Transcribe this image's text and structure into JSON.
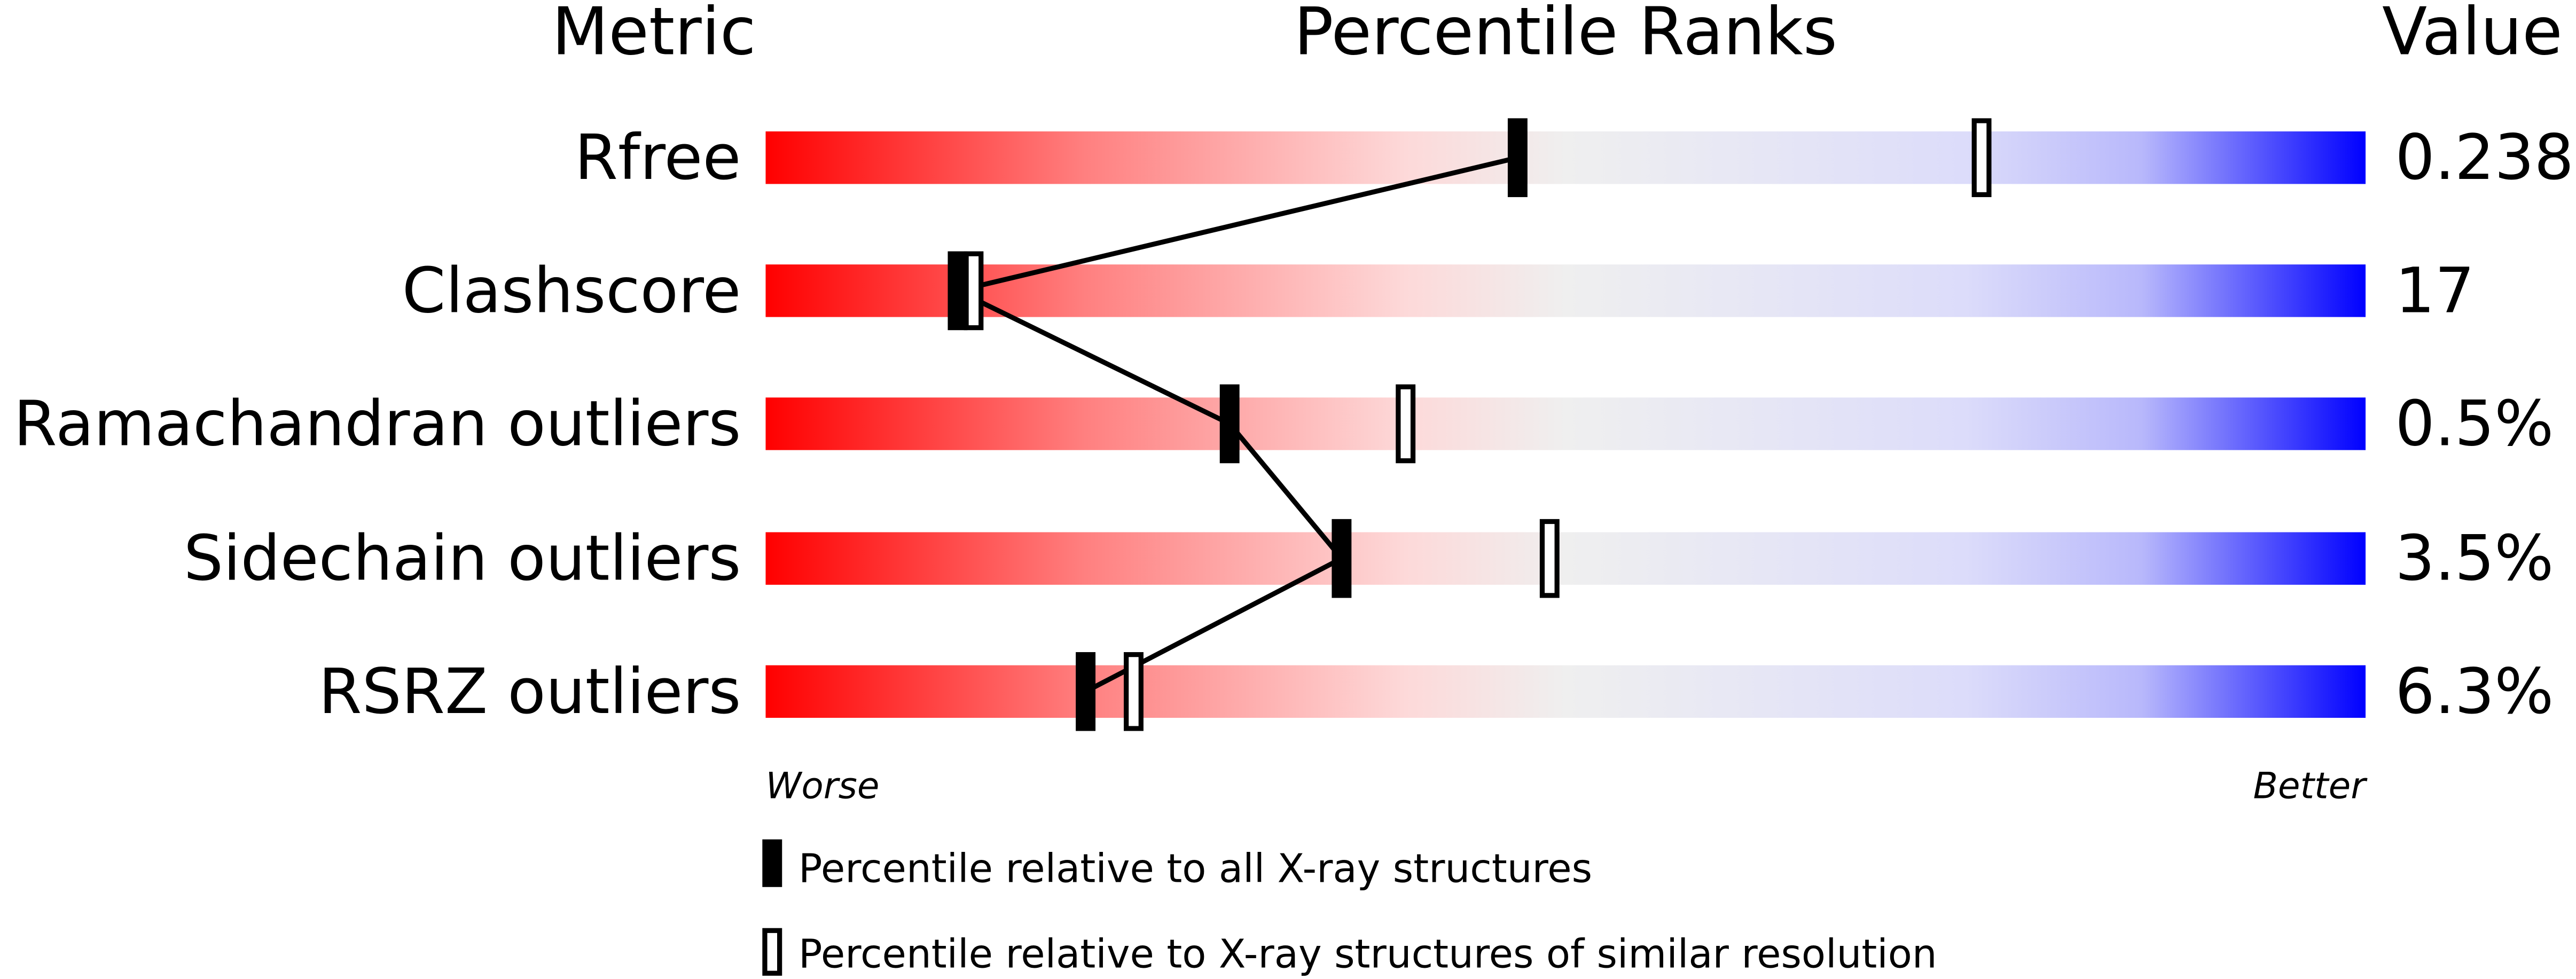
{
  "chart_data": {
    "type": "percentile-rank-slider",
    "headers": {
      "metric": "Metric",
      "ranks": "Percentile Ranks",
      "value": "Value"
    },
    "axis": {
      "min": 0,
      "max": 100,
      "left_label": "Worse",
      "right_label": "Better"
    },
    "rows": [
      {
        "metric": "Rfree",
        "value": "0.238",
        "percentile_all": 47,
        "percentile_similar": 76
      },
      {
        "metric": "Clashscore",
        "value": "17",
        "percentile_all": 12,
        "percentile_similar": 13
      },
      {
        "metric": "Ramachandran outliers",
        "value": "0.5%",
        "percentile_all": 29,
        "percentile_similar": 40
      },
      {
        "metric": "Sidechain outliers",
        "value": "3.5%",
        "percentile_all": 36,
        "percentile_similar": 49
      },
      {
        "metric": "RSRZ outliers",
        "value": "6.3%",
        "percentile_all": 20,
        "percentile_similar": 23
      }
    ],
    "legend": [
      {
        "marker": "filled",
        "label": "Percentile relative to all X-ray structures"
      },
      {
        "marker": "open",
        "label": "Percentile relative to X-ray structures of similar resolution"
      }
    ],
    "colors": {
      "worse": "#ff0000",
      "mid": "#efefef",
      "better": "#0000ff"
    }
  }
}
